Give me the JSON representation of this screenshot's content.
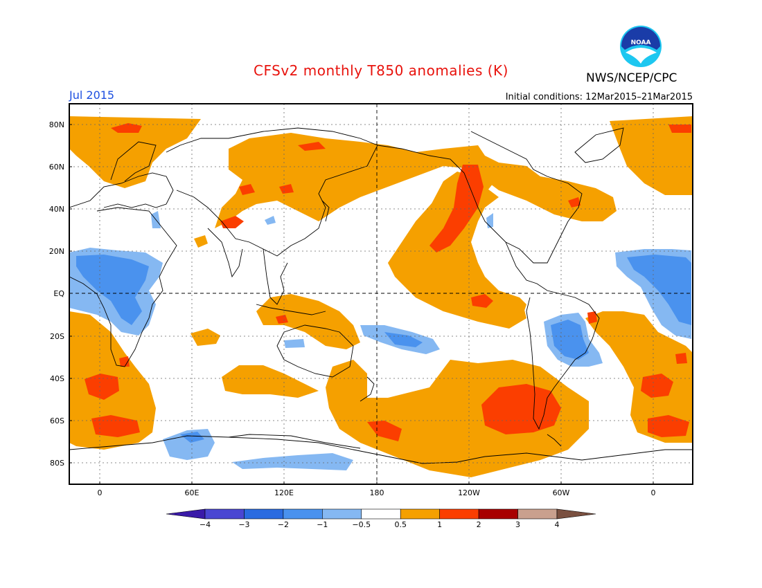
{
  "header": {
    "title": "CFSv2 monthly T850 anomalies (K)",
    "agency": "NWS/NCEP/CPC",
    "logo_text": "NOAA",
    "month": "Jul 2015",
    "initial_conditions": "Initial conditions: 12Mar2015–21Mar2015"
  },
  "map": {
    "lat_labels": [
      "80N",
      "60N",
      "40N",
      "20N",
      "EQ",
      "20S",
      "40S",
      "60S",
      "80S"
    ],
    "lon_labels": [
      "0",
      "60E",
      "120E",
      "180",
      "120W",
      "60W",
      "0"
    ]
  },
  "colorbar": {
    "labels": [
      "−4",
      "−3",
      "−2",
      "−1",
      "−0.5",
      "0.5",
      "1",
      "2",
      "3",
      "4"
    ],
    "colors": [
      "#3a1aa8",
      "#4a46d2",
      "#2a6be0",
      "#4a92ee",
      "#85b8f2",
      "#ffffff",
      "#f5a000",
      "#fb3e00",
      "#a80000",
      "#c9a08e",
      "#7a5040"
    ]
  },
  "palette": {
    "orange": "#f5a000",
    "red": "#fb3e00",
    "light_blue": "#85b8f2",
    "mid_blue": "#4a92ee"
  }
}
